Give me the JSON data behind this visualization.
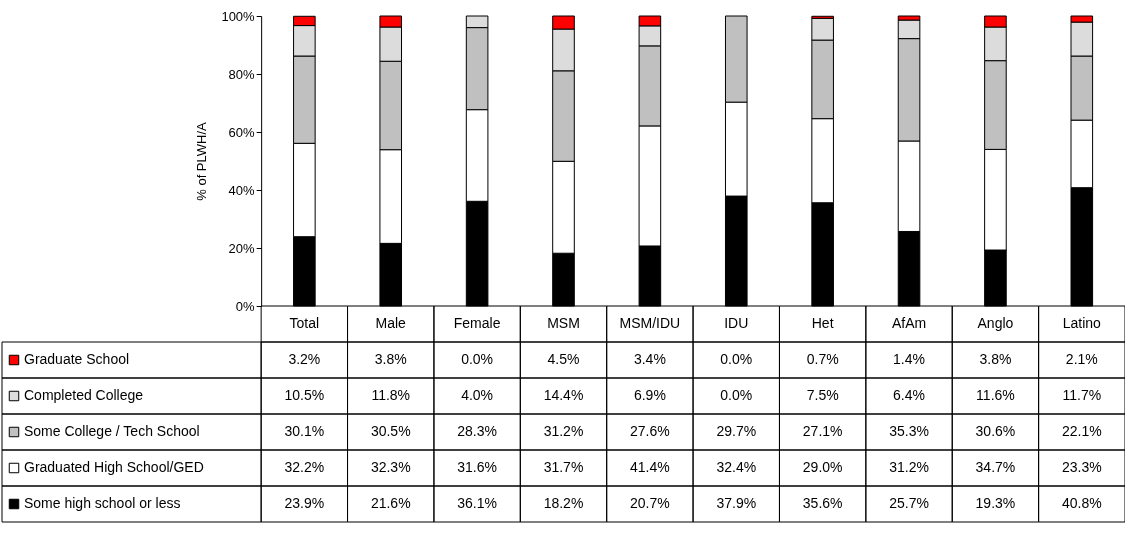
{
  "chart_data": {
    "type": "bar",
    "stacked": true,
    "ylabel": "% of PLWH/A",
    "ylim": [
      0,
      100
    ],
    "yticks": [
      {
        "value": 0,
        "label": "0%"
      },
      {
        "value": 20,
        "label": "20%"
      },
      {
        "value": 40,
        "label": "40%"
      },
      {
        "value": 60,
        "label": "60%"
      },
      {
        "value": 80,
        "label": "80%"
      },
      {
        "value": 100,
        "label": "100%"
      }
    ],
    "grid": false,
    "legend": "bottom left",
    "categories": [
      "Total",
      "Male",
      "Female",
      "MSM",
      "MSM/IDU",
      "IDU",
      "Het",
      "AfAm",
      "Anglo",
      "Latino"
    ],
    "series": [
      {
        "name": "Some high school or less",
        "color": "#000000",
        "values": [
          23.9,
          21.6,
          36.1,
          18.2,
          20.7,
          37.9,
          35.6,
          25.7,
          19.3,
          40.8
        ],
        "value_labels": [
          "23.9%",
          "21.6%",
          "36.1%",
          "18.2%",
          "20.7%",
          "37.9%",
          "35.6%",
          "25.7%",
          "19.3%",
          "40.8%"
        ]
      },
      {
        "name": "Graduated High School/GED",
        "color": "#ffffff",
        "values": [
          32.2,
          32.3,
          31.6,
          31.7,
          41.4,
          32.4,
          29.0,
          31.2,
          34.7,
          23.3
        ],
        "value_labels": [
          "32.2%",
          "32.3%",
          "31.6%",
          "31.7%",
          "41.4%",
          "32.4%",
          "29.0%",
          "31.2%",
          "34.7%",
          "23.3%"
        ]
      },
      {
        "name": "Some College / Tech School",
        "color": "#c0c0c0",
        "values": [
          30.1,
          30.5,
          28.3,
          31.2,
          27.6,
          29.7,
          27.1,
          35.3,
          30.6,
          22.1
        ],
        "value_labels": [
          "30.1%",
          "30.5%",
          "28.3%",
          "31.2%",
          "27.6%",
          "29.7%",
          "27.1%",
          "35.3%",
          "30.6%",
          "22.1%"
        ]
      },
      {
        "name": "Completed College",
        "color": "#dcdcdc",
        "values": [
          10.5,
          11.8,
          4.0,
          14.4,
          6.9,
          0.0,
          7.5,
          6.4,
          11.6,
          11.7
        ],
        "value_labels": [
          "10.5%",
          "11.8%",
          "4.0%",
          "14.4%",
          "6.9%",
          "0.0%",
          "7.5%",
          "6.4%",
          "11.6%",
          "11.7%"
        ]
      },
      {
        "name": "Graduate School",
        "color": "#ff0000",
        "values": [
          3.2,
          3.8,
          0.0,
          4.5,
          3.4,
          0.0,
          0.7,
          1.4,
          3.8,
          2.1
        ],
        "value_labels": [
          "3.2%",
          "3.8%",
          "0.0%",
          "4.5%",
          "3.4%",
          "0.0%",
          "0.7%",
          "1.4%",
          "3.8%",
          "2.1%"
        ]
      }
    ]
  }
}
